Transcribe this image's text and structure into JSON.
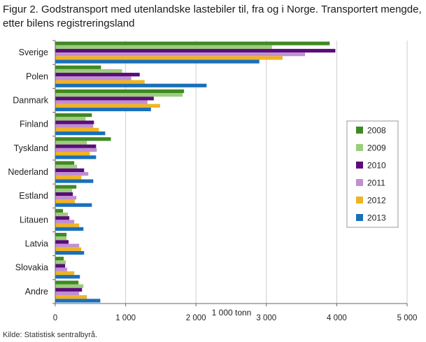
{
  "title": "Figur 2. Godstransport med utenlandske lastebiler til, fra og i Norge. Transportert mengde, etter bilens registreringsland",
  "source": "Kilde: Statistisk sentralbyrå.",
  "colors": {
    "2008": "#3e8a22",
    "2009": "#9ccc7c",
    "2010": "#5b0c7a",
    "2011": "#c18fd1",
    "2012": "#f0b323",
    "2013": "#1a6fba",
    "grid": "#cccccc",
    "axis": "#666666"
  },
  "chart_data": {
    "type": "bar",
    "orientation": "horizontal",
    "title": "Figur 2. Godstransport med utenlandske lastebiler til, fra og i Norge. Transportert mengde, etter bilens registreringsland",
    "xlabel": "1 000 tonn",
    "ylabel": "",
    "xlim": [
      0,
      5000
    ],
    "xticks": [
      0,
      1000,
      2000,
      3000,
      4000,
      5000
    ],
    "xtick_labels": [
      "0",
      "1 000",
      "2 000",
      "3 000",
      "4 000",
      "5 000"
    ],
    "grid": "vertical",
    "legend_position": "right",
    "categories": [
      "Sverige",
      "Polen",
      "Danmark",
      "Finland",
      "Tyskland",
      "Nederland",
      "Estland",
      "Litauen",
      "Latvia",
      "Slovakia",
      "Andre"
    ],
    "series": [
      {
        "name": "2008",
        "values": [
          3900,
          650,
          1830,
          520,
          790,
          270,
          300,
          110,
          160,
          120,
          330
        ]
      },
      {
        "name": "2009",
        "values": [
          3080,
          950,
          1810,
          430,
          450,
          310,
          240,
          180,
          160,
          150,
          400
        ]
      },
      {
        "name": "2010",
        "values": [
          3980,
          1200,
          1400,
          550,
          580,
          410,
          250,
          200,
          190,
          140,
          380
        ]
      },
      {
        "name": "2011",
        "values": [
          3550,
          1080,
          1310,
          540,
          590,
          470,
          300,
          270,
          340,
          170,
          340
        ]
      },
      {
        "name": "2012",
        "values": [
          3230,
          1270,
          1490,
          620,
          490,
          370,
          280,
          340,
          370,
          270,
          450
        ]
      },
      {
        "name": "2013",
        "values": [
          2900,
          2150,
          1360,
          710,
          580,
          540,
          520,
          400,
          410,
          350,
          640
        ]
      }
    ]
  }
}
